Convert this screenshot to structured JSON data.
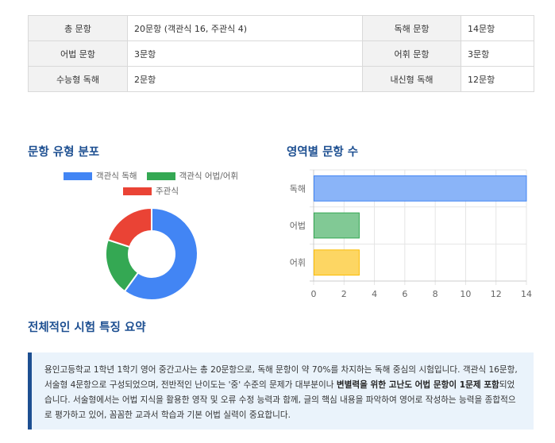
{
  "stats": {
    "rows": [
      {
        "label1": "총 문항",
        "value1": "20문항 (객관식 16, 주관식 4)",
        "label2": "독해 문항",
        "value2": "14문항"
      },
      {
        "label1": "어법 문항",
        "value1": "3문항",
        "label2": "어휘 문항",
        "value2": "3문항"
      },
      {
        "label1": "수능형 독해",
        "value1": "2문항",
        "label2": "내신형 독해",
        "value2": "12문항"
      }
    ]
  },
  "pie_section": {
    "title": "문항 유형 분포"
  },
  "bar_section": {
    "title": "영역별 문항 수"
  },
  "chart_data": [
    {
      "type": "pie",
      "labels": [
        "객관식 독해",
        "객관식 어법/어휘",
        "주관식"
      ],
      "values": [
        12,
        4,
        4
      ],
      "colors": [
        "#4285f4",
        "#34a853",
        "#ea4335"
      ],
      "legend": "top"
    },
    {
      "type": "bar",
      "orientation": "horizontal",
      "categories": [
        "독해",
        "어법",
        "어휘"
      ],
      "values": [
        14,
        3,
        3
      ],
      "colors": [
        "#8ab4f8",
        "#81c995",
        "#fdd663"
      ],
      "borders": [
        "#4285f4",
        "#34a853",
        "#fbbc04"
      ],
      "xlim": [
        0,
        14
      ],
      "ticks": [
        "0",
        "2",
        "4",
        "6",
        "8",
        "10",
        "12",
        "14"
      ],
      "grid": true
    }
  ],
  "summary": {
    "title": "전체적인 시험 특징 요약",
    "text_before": "용인고등학교 1학년 1학기 영어 중간고사는 총 20문항으로, 독해 문항이 약 70%를 차지하는 독해 중심의 시험입니다. 객관식 16문항, 서술형 4문항으로 구성되었으며, 전반적인 난이도는 '중' 수준의 문제가 대부분이나 ",
    "highlight": "변별력을 위한 고난도 어법 문항이 1문제 포함",
    "text_after": "되었습니다. 서술형에서는 어법 지식을 활용한 영작 및 오류 수정 능력과 함께, 글의 핵심 내용을 파악하여 영어로 작성하는 능력을 종합적으로 평가하고 있어, 꼼꼼한 교과서 학습과 기본 어법 실력이 중요합니다."
  }
}
